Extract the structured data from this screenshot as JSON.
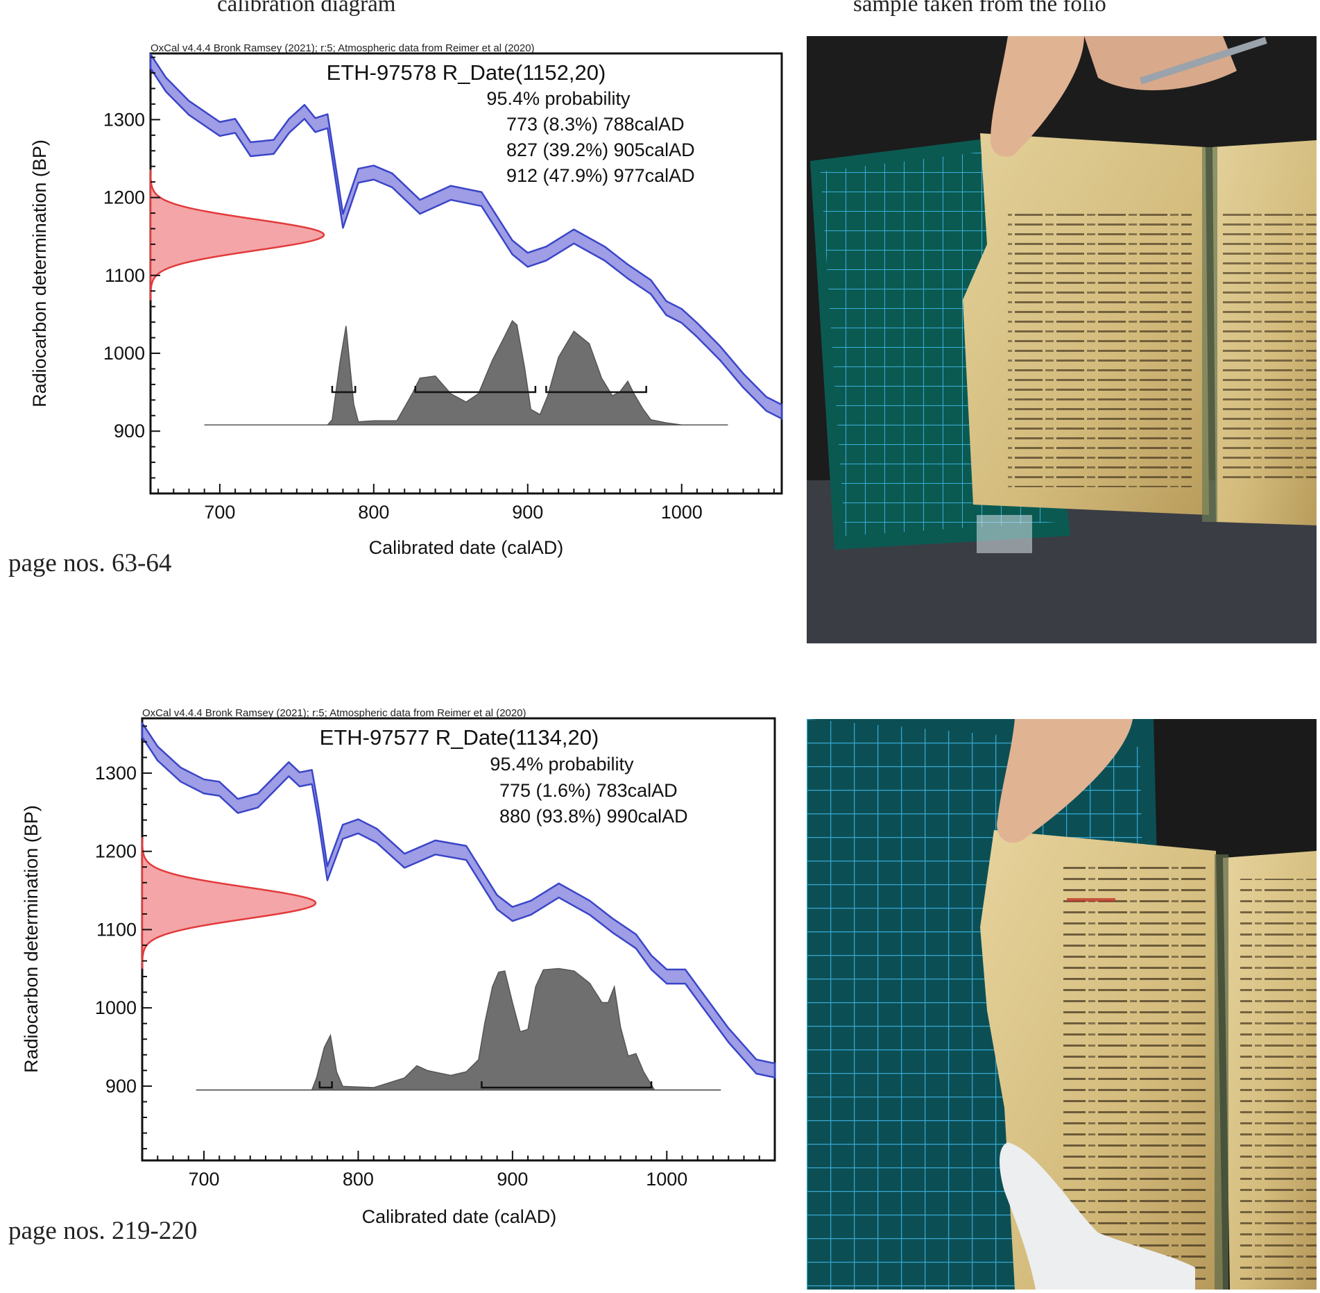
{
  "column_headings": {
    "left": "calibration diagram",
    "right": "sample taken from the folio"
  },
  "panels": [
    {
      "page_label": "page nos. 63-64"
    },
    {
      "page_label": "page nos. 219-220"
    }
  ],
  "photos": [
    {
      "subject": "manuscript folio held open over a green cutting mat with grid",
      "colors": {
        "mat": "#0b5a52",
        "grid": "#3fb7e8",
        "parchment": "#d9c48a"
      }
    },
    {
      "subject": "manuscript folio held open over a green cutting mat with grid, gloved hand pointing",
      "colors": {
        "mat": "#0b4f55",
        "grid": "#3fb7e8",
        "parchment": "#d9c48a"
      }
    }
  ],
  "chart_data": [
    {
      "type": "area",
      "header": "OxCal v4.4.4 Bronk Ramsey (2021); r:5; Atmospheric data from Reimer et al (2020)",
      "title": "ETH-97578 R_Date(1152,20)",
      "probability_label": "95.4% probability",
      "ranges_text": [
        "773 (8.3%) 788calAD",
        "827 (39.2%) 905calAD",
        "912 (47.9%) 977calAD"
      ],
      "ranges": [
        [
          773,
          788
        ],
        [
          827,
          905
        ],
        [
          912,
          977
        ]
      ],
      "xlabel": "Calibrated date (calAD)",
      "ylabel": "Radiocarbon determination (BP)",
      "x_ticks": [
        700,
        800,
        900,
        1000
      ],
      "y_ticks": [
        900,
        1000,
        1100,
        1200,
        1300
      ],
      "xlim": [
        655,
        1065
      ],
      "ylim": [
        820,
        1385
      ],
      "radiocarbon_date": {
        "mean": 1152,
        "sd": 20
      },
      "calibration_curve": {
        "x": [
          655,
          665,
          680,
          700,
          710,
          720,
          735,
          745,
          755,
          762,
          770,
          773,
          780,
          790,
          800,
          812,
          830,
          850,
          870,
          890,
          900,
          912,
          930,
          950,
          965,
          980,
          990,
          1000,
          1010,
          1025,
          1040,
          1055,
          1065
        ],
        "y": [
          1375,
          1345,
          1315,
          1288,
          1292,
          1262,
          1265,
          1292,
          1310,
          1293,
          1298,
          1260,
          1170,
          1228,
          1232,
          1222,
          1188,
          1206,
          1198,
          1136,
          1120,
          1128,
          1150,
          1128,
          1105,
          1085,
          1058,
          1048,
          1030,
          1000,
          965,
          935,
          925
        ]
      },
      "calibrated_distribution": {
        "x": [
          690,
          770,
          773,
          778,
          782,
          787,
          790,
          800,
          815,
          825,
          830,
          840,
          850,
          860,
          868,
          877,
          885,
          890,
          893,
          898,
          902,
          908,
          913,
          920,
          930,
          940,
          948,
          955,
          960,
          965,
          969,
          975,
          980,
          990,
          1000,
          1030
        ],
        "y": [
          0,
          0,
          0.05,
          0.6,
          0.95,
          0.2,
          0.03,
          0.04,
          0.04,
          0.3,
          0.45,
          0.47,
          0.3,
          0.22,
          0.3,
          0.62,
          0.85,
          1.0,
          0.96,
          0.55,
          0.15,
          0.1,
          0.28,
          0.65,
          0.9,
          0.78,
          0.45,
          0.28,
          0.32,
          0.42,
          0.3,
          0.15,
          0.05,
          0.02,
          0,
          0
        ]
      }
    },
    {
      "type": "area",
      "header": "OxCal v4.4.4 Bronk Ramsey (2021); r:5; Atmospheric data from Reimer et al (2020)",
      "title": "ETH-97577 R_Date(1134,20)",
      "probability_label": "95.4% probability",
      "ranges_text": [
        "775 (1.6%) 783calAD",
        "880 (93.8%) 990calAD"
      ],
      "ranges": [
        [
          775,
          783
        ],
        [
          880,
          990
        ]
      ],
      "xlabel": "Calibrated date (calAD)",
      "ylabel": "Radiocarbon determination (BP)",
      "x_ticks": [
        700,
        800,
        900,
        1000
      ],
      "y_ticks": [
        900,
        1000,
        1100,
        1200,
        1300
      ],
      "xlim": [
        660,
        1070
      ],
      "ylim": [
        805,
        1370
      ],
      "radiocarbon_date": {
        "mean": 1134,
        "sd": 20
      },
      "calibration_curve": {
        "x": [
          660,
          670,
          685,
          700,
          710,
          722,
          735,
          745,
          755,
          762,
          770,
          774,
          780,
          790,
          800,
          812,
          830,
          850,
          870,
          890,
          900,
          912,
          930,
          950,
          965,
          980,
          990,
          1000,
          1012,
          1025,
          1040,
          1058,
          1070
        ],
        "y": [
          1355,
          1325,
          1298,
          1283,
          1280,
          1258,
          1265,
          1285,
          1305,
          1292,
          1295,
          1250,
          1172,
          1225,
          1232,
          1220,
          1188,
          1205,
          1198,
          1135,
          1120,
          1128,
          1150,
          1128,
          1105,
          1085,
          1058,
          1040,
          1040,
          1005,
          965,
          925,
          920
        ]
      },
      "calibrated_distribution": {
        "x": [
          695,
          770,
          773,
          778,
          782,
          786,
          790,
          810,
          830,
          838,
          845,
          860,
          870,
          878,
          882,
          887,
          891,
          895,
          900,
          905,
          910,
          915,
          920,
          930,
          940,
          950,
          958,
          962,
          966,
          970,
          975,
          980,
          985,
          992,
          1035
        ],
        "y": [
          0,
          0,
          0.1,
          0.35,
          0.45,
          0.15,
          0.03,
          0.02,
          0.1,
          0.2,
          0.16,
          0.12,
          0.15,
          0.25,
          0.55,
          0.85,
          0.97,
          0.98,
          0.72,
          0.48,
          0.5,
          0.85,
          0.99,
          1.0,
          0.98,
          0.88,
          0.72,
          0.72,
          0.85,
          0.52,
          0.28,
          0.3,
          0.15,
          0,
          0
        ]
      }
    }
  ]
}
